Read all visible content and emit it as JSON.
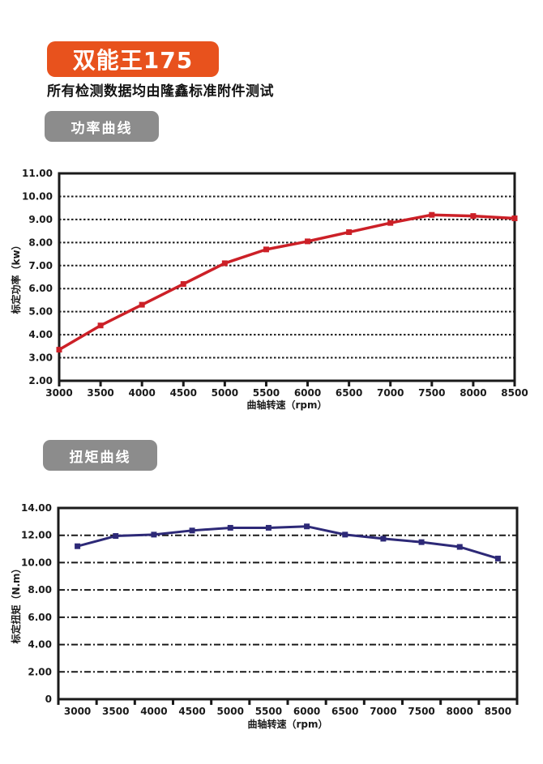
{
  "page": {
    "model_badge": "双能王175",
    "subtitle": "所有检测数据均由隆鑫标准附件测试",
    "colors": {
      "accent_orange": "#E8521D",
      "badge_gray": "#8C8C8C",
      "power_line": "#CC2027",
      "torque_line": "#2D2977",
      "ink": "#1A1A1A"
    }
  },
  "power_section": {
    "badge_label": "功率曲线"
  },
  "torque_section": {
    "badge_label": "扭矩曲线"
  },
  "chart_data": [
    {
      "type": "line",
      "title": "功率曲线",
      "x": [
        3000,
        3500,
        4000,
        4500,
        5000,
        5500,
        6000,
        6500,
        7000,
        7500,
        8000,
        8500
      ],
      "series": [
        {
          "name": "标定功率",
          "values": [
            3.35,
            4.4,
            5.3,
            6.2,
            7.1,
            7.7,
            8.05,
            8.45,
            8.85,
            9.2,
            9.15,
            9.05
          ]
        }
      ],
      "xlabel": "曲轴转速（rpm）",
      "ylabel": "标定功率（kw）",
      "ylim": [
        2,
        11
      ],
      "ytick_step": 1,
      "grid": "dotted",
      "line_color": "#CC2027",
      "x_mode": "value",
      "legend": "none"
    },
    {
      "type": "line",
      "title": "扭矩曲线",
      "x": [
        3000,
        3500,
        4000,
        4500,
        5000,
        5500,
        6000,
        6500,
        7000,
        7500,
        8000,
        8500
      ],
      "series": [
        {
          "name": "标定扭矩",
          "values": [
            11.2,
            11.95,
            12.05,
            12.35,
            12.55,
            12.55,
            12.65,
            12.05,
            11.75,
            11.5,
            11.15,
            10.3
          ]
        }
      ],
      "xlabel": "曲轴转速（rpm）",
      "ylabel": "标定扭矩（N.m）",
      "ylim": [
        0,
        14
      ],
      "ytick_step": 2,
      "grid": "dashdot",
      "line_color": "#2D2977",
      "x_mode": "category",
      "legend": "none"
    }
  ]
}
